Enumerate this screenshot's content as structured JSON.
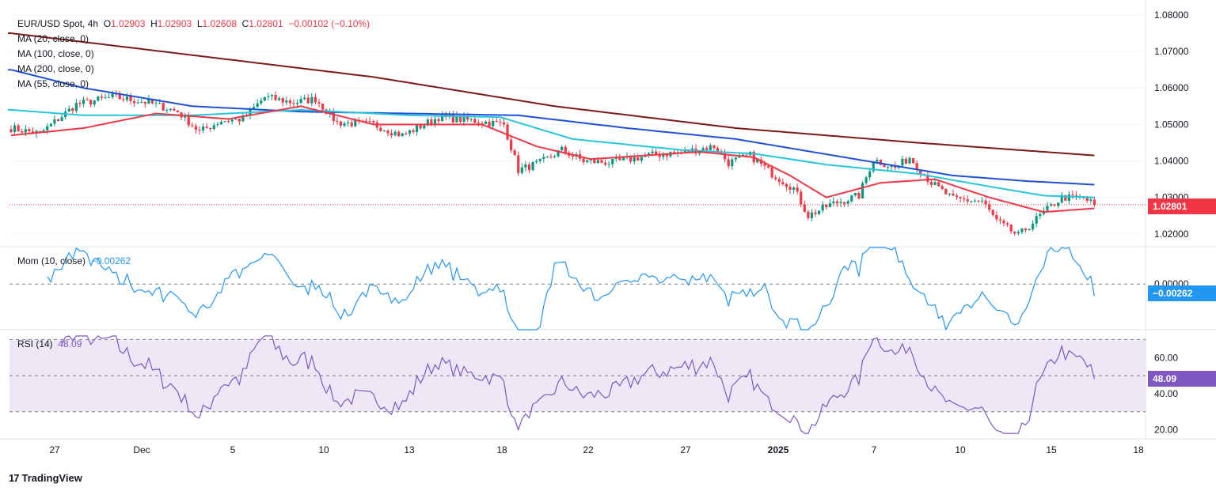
{
  "header": {
    "symbol": "EUR/USD Spot, 4h",
    "open_label": "O",
    "open": "1.02903",
    "high_label": "H",
    "high": "1.02903",
    "low_label": "L",
    "low": "1.02608",
    "close_label": "C",
    "close": "1.02801",
    "change": "−0.00102 (−0.10%)"
  },
  "indicators": {
    "ma20": "MA (20, close, 0)",
    "ma100": "MA (100, close, 0)",
    "ma200": "MA (200, close, 0)",
    "ma55": "MA (55, close, 0)",
    "mom_label": "Mom (10, close)",
    "mom_value": "−0.00262",
    "rsi_label": "RSI (14)",
    "rsi_value": "48.09"
  },
  "price_tag": "1.02801",
  "mom_tag": "−0.00262",
  "rsi_tag": "48.09",
  "branding": "TradingView",
  "colors": {
    "up": "#089981",
    "down": "#f23645",
    "ma20": "#f23645",
    "ma55": "#26c6da",
    "ma100": "#1e4fd8",
    "ma200": "#7b1a1a",
    "mom": "#2196f3",
    "rsi": "#7e57c2",
    "rsi_band": "#ede7f6"
  },
  "chart_data": [
    {
      "type": "candlestick",
      "title": "EUR/USD Spot, 4h",
      "ylim": [
        1.0165,
        1.0815
      ],
      "yticks": [
        "1.08000",
        "1.07000",
        "1.06000",
        "1.05000",
        "1.04000",
        "1.03000",
        "1.02000"
      ],
      "xticks": [
        "27",
        "Dec",
        "5",
        "10",
        "13",
        "18",
        "22",
        "27",
        "2025",
        "7",
        "10",
        "15",
        "18"
      ],
      "n_bars": 300,
      "anchors_close": [
        [
          0,
          1.049
        ],
        [
          8,
          1.0475
        ],
        [
          18,
          1.0555
        ],
        [
          28,
          1.0575
        ],
        [
          38,
          1.056
        ],
        [
          46,
          1.0535
        ],
        [
          52,
          1.048
        ],
        [
          58,
          1.051
        ],
        [
          64,
          1.0515
        ],
        [
          70,
          1.0575
        ],
        [
          78,
          1.056
        ],
        [
          84,
          1.057
        ],
        [
          90,
          1.0505
        ],
        [
          100,
          1.05
        ],
        [
          108,
          1.047
        ],
        [
          118,
          1.052
        ],
        [
          128,
          1.051
        ],
        [
          136,
          1.05
        ],
        [
          140,
          1.0375
        ],
        [
          146,
          1.0395
        ],
        [
          152,
          1.043
        ],
        [
          158,
          1.04
        ],
        [
          166,
          1.0395
        ],
        [
          176,
          1.0415
        ],
        [
          186,
          1.0425
        ],
        [
          194,
          1.044
        ],
        [
          198,
          1.0395
        ],
        [
          204,
          1.0415
        ],
        [
          210,
          1.0365
        ],
        [
          216,
          1.0325
        ],
        [
          220,
          1.025
        ],
        [
          226,
          1.028
        ],
        [
          234,
          1.0305
        ],
        [
          238,
          1.0405
        ],
        [
          244,
          1.038
        ],
        [
          248,
          1.041
        ],
        [
          254,
          1.034
        ],
        [
          260,
          1.0295
        ],
        [
          268,
          1.029
        ],
        [
          272,
          1.0235
        ],
        [
          278,
          1.0195
        ],
        [
          284,
          1.025
        ],
        [
          290,
          1.03
        ],
        [
          296,
          1.0298
        ],
        [
          299,
          1.028
        ]
      ],
      "moving_averages": {
        "MA20": [
          [
            0,
            1.047
          ],
          [
            20,
            1.049
          ],
          [
            40,
            1.053
          ],
          [
            60,
            1.0515
          ],
          [
            80,
            1.055
          ],
          [
            100,
            1.05
          ],
          [
            130,
            1.05
          ],
          [
            145,
            1.044
          ],
          [
            160,
            1.0405
          ],
          [
            190,
            1.0425
          ],
          [
            205,
            1.041
          ],
          [
            215,
            1.036
          ],
          [
            225,
            1.03
          ],
          [
            240,
            1.034
          ],
          [
            255,
            1.035
          ],
          [
            270,
            1.03
          ],
          [
            285,
            1.026
          ],
          [
            299,
            1.027
          ]
        ],
        "MA55": [
          [
            0,
            1.054
          ],
          [
            20,
            1.0525
          ],
          [
            50,
            1.0525
          ],
          [
            80,
            1.054
          ],
          [
            110,
            1.0525
          ],
          [
            135,
            1.052
          ],
          [
            155,
            1.046
          ],
          [
            185,
            1.043
          ],
          [
            205,
            1.042
          ],
          [
            225,
            1.039
          ],
          [
            250,
            1.0365
          ],
          [
            270,
            1.033
          ],
          [
            285,
            1.0305
          ],
          [
            299,
            1.03
          ]
        ],
        "MA100": [
          [
            0,
            1.065
          ],
          [
            20,
            1.06
          ],
          [
            50,
            1.055
          ],
          [
            80,
            1.0535
          ],
          [
            110,
            1.053
          ],
          [
            140,
            1.0525
          ],
          [
            170,
            1.049
          ],
          [
            200,
            1.046
          ],
          [
            230,
            1.041
          ],
          [
            260,
            1.036
          ],
          [
            280,
            1.0345
          ],
          [
            299,
            1.0335
          ]
        ],
        "MA200": [
          [
            0,
            1.075
          ],
          [
            50,
            1.069
          ],
          [
            100,
            1.063
          ],
          [
            150,
            1.055
          ],
          [
            200,
            1.049
          ],
          [
            250,
            1.045
          ],
          [
            299,
            1.0415
          ]
        ]
      }
    },
    {
      "type": "line",
      "title": "Mom (10, close)",
      "last_value": -0.00262,
      "ylim": [
        -0.01,
        0.008
      ],
      "zero_line": 0.0
    },
    {
      "type": "line",
      "title": "RSI (14)",
      "last_value": 48.09,
      "ylim": [
        15,
        75
      ],
      "yticks": [
        "60.00",
        "40.00",
        "20.00"
      ],
      "band": [
        30,
        70
      ],
      "mid_line": 50
    }
  ]
}
